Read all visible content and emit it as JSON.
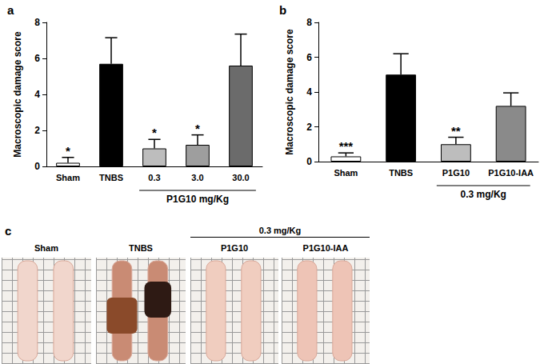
{
  "chart_data": [
    {
      "type": "bar",
      "title": "a",
      "y_label": "Macroscopic damage score",
      "categories": [
        "Sham",
        "TNBS",
        "0.3",
        "3.0",
        "30.0"
      ],
      "values": [
        0.2,
        5.7,
        1.0,
        1.2,
        5.6
      ],
      "errors": [
        0.3,
        1.45,
        0.5,
        0.55,
        1.75
      ],
      "significance": [
        "*",
        null,
        "*",
        "*",
        null
      ],
      "colors": [
        "#ffffff",
        "#000000",
        "#bdbdbd",
        "#9e9e9e",
        "#6b6b6b"
      ],
      "group_label": "P1G10 mg/Kg",
      "group_categories": [
        "0.3",
        "3.0",
        "30.0"
      ],
      "ylim": [
        0,
        8
      ],
      "yticks": [
        0,
        2,
        4,
        6,
        8
      ],
      "grid": false
    },
    {
      "type": "bar",
      "title": "b",
      "y_label": "Macroscopic damage score",
      "categories": [
        "Sham",
        "TNBS",
        "P1G10",
        "P1G10-IAA"
      ],
      "values": [
        0.3,
        5.0,
        1.0,
        3.2
      ],
      "errors": [
        0.2,
        1.2,
        0.4,
        0.75
      ],
      "significance": [
        "***",
        null,
        "**",
        null
      ],
      "colors": [
        "#ffffff",
        "#000000",
        "#bdbdbd",
        "#8a8a8a"
      ],
      "group_label": "0.3 mg/Kg",
      "group_categories": [
        "P1G10",
        "P1G10-IAA"
      ],
      "ylim": [
        0,
        8
      ],
      "yticks": [
        0,
        2,
        4,
        6,
        8
      ],
      "grid": false
    }
  ],
  "panel_c": {
    "title": "c",
    "group_label": "0.3 mg/Kg",
    "samples": [
      {
        "label": "Sham",
        "group": false
      },
      {
        "label": "TNBS",
        "group": false
      },
      {
        "label": "P1G10",
        "group": true
      },
      {
        "label": "P1G10-IAA",
        "group": true
      }
    ]
  }
}
